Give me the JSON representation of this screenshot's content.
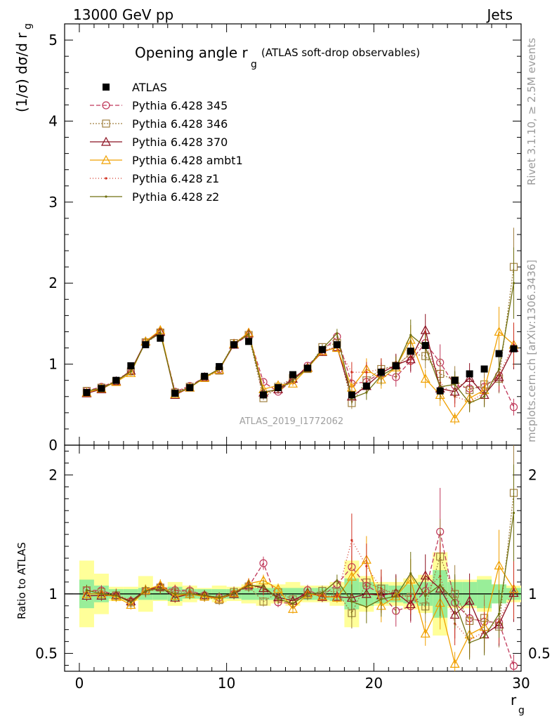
{
  "header": {
    "beam": "13000 GeV pp",
    "category": "Jets",
    "title_main": "Opening angle r",
    "title_sub": "g",
    "title_note": "(ATLAS soft-drop observables)",
    "analysis_id": "ATLAS_2019_I1772062",
    "side_right_top": "Rivet 3.1.10, ≥ 2.5M events",
    "side_right_bottom": "mcplots.cern.ch [arXiv:1306.3436]"
  },
  "chart_data": [
    {
      "panel": "main",
      "type": "line",
      "ylabel": "(1/σ) dσ/d r g",
      "xlabel": "r g",
      "xlim": [
        -1,
        30
      ],
      "ylim": [
        0,
        5.2
      ],
      "yticks": [
        "0",
        "1",
        "2",
        "3",
        "4",
        "5"
      ],
      "xticks": [
        "0",
        "10",
        "20",
        "30"
      ],
      "x": [
        0.5,
        1.5,
        2.5,
        3.5,
        4.5,
        5.5,
        6.5,
        7.5,
        8.5,
        9.5,
        10.5,
        11.5,
        12.5,
        13.5,
        14.5,
        15.5,
        16.5,
        17.5,
        18.5,
        19.5,
        20.5,
        21.5,
        22.5,
        23.5,
        24.5,
        25.5,
        26.5,
        27.5,
        28.5,
        29.5
      ],
      "series": [
        {
          "name": "ATLAS",
          "color": "#000000",
          "marker": "square-filled",
          "values": [
            0.65,
            0.7,
            0.8,
            0.98,
            1.24,
            1.32,
            0.64,
            0.71,
            0.85,
            0.97,
            1.24,
            1.28,
            0.62,
            0.71,
            0.87,
            0.95,
            1.18,
            1.24,
            0.62,
            0.73,
            0.9,
            0.98,
            1.16,
            1.23,
            0.67,
            0.8,
            0.88,
            0.94,
            1.13,
            1.19
          ]
        },
        {
          "name": "Pythia 6.428 345",
          "color": "#c0385a",
          "marker": "circle",
          "dash": "6,3",
          "values": [
            0.67,
            0.72,
            0.79,
            0.92,
            1.27,
            1.4,
            0.66,
            0.73,
            0.84,
            0.94,
            1.24,
            1.36,
            0.78,
            0.66,
            0.8,
            0.98,
            1.16,
            1.34,
            0.76,
            0.78,
            0.9,
            0.84,
            1.04,
            1.26,
            1.02,
            0.74,
            0.7,
            0.72,
            0.86,
            0.47
          ]
        },
        {
          "name": "Pythia 6.428 346",
          "color": "#a08040",
          "marker": "square",
          "dash": "2,2",
          "values": [
            0.67,
            0.71,
            0.79,
            0.91,
            1.27,
            1.39,
            0.65,
            0.72,
            0.83,
            0.92,
            1.26,
            1.36,
            0.58,
            0.72,
            0.83,
            0.94,
            1.21,
            1.26,
            0.52,
            0.8,
            0.94,
            0.98,
            1.13,
            1.1,
            0.88,
            0.8,
            0.68,
            0.75,
            0.82,
            2.2
          ]
        },
        {
          "name": "Pythia 6.428 370",
          "color": "#8b1020",
          "marker": "triangle",
          "values": [
            0.64,
            0.69,
            0.79,
            0.92,
            1.28,
            1.4,
            0.62,
            0.71,
            0.84,
            0.93,
            1.24,
            1.38,
            0.65,
            0.69,
            0.82,
            0.96,
            1.15,
            1.21,
            0.6,
            0.73,
            0.89,
            0.99,
            1.06,
            1.42,
            0.7,
            0.66,
            0.83,
            0.62,
            0.84,
            1.2
          ]
        },
        {
          "name": "Pythia 6.428 ambt1",
          "color": "#f0a000",
          "marker": "triangle",
          "values": [
            0.65,
            0.7,
            0.78,
            0.89,
            1.28,
            1.42,
            0.63,
            0.71,
            0.83,
            0.93,
            1.25,
            1.39,
            0.69,
            0.74,
            0.76,
            0.95,
            1.16,
            1.2,
            0.71,
            0.94,
            0.81,
            0.96,
            1.3,
            0.82,
            0.62,
            0.33,
            0.58,
            0.68,
            1.4,
            1.24
          ]
        },
        {
          "name": "Pythia 6.428 z1",
          "color": "#d03020",
          "marker": "dot",
          "dash": "1,3",
          "values": [
            0.67,
            0.71,
            0.8,
            0.92,
            1.26,
            1.38,
            0.66,
            0.72,
            0.84,
            0.94,
            1.26,
            1.38,
            0.64,
            0.68,
            0.8,
            0.96,
            1.16,
            1.22,
            0.9,
            0.9,
            0.94,
            0.96,
            1.14,
            1.26,
            0.77,
            0.6,
            0.54,
            0.64,
            0.87,
            1.24
          ]
        },
        {
          "name": "Pythia 6.428 z2",
          "color": "#707010",
          "marker": "dot",
          "values": [
            0.67,
            0.7,
            0.79,
            0.91,
            1.27,
            1.38,
            0.64,
            0.71,
            0.84,
            0.94,
            1.25,
            1.37,
            0.66,
            0.68,
            0.8,
            0.95,
            1.19,
            1.38,
            0.58,
            0.65,
            0.86,
            0.96,
            1.36,
            1.21,
            0.72,
            0.75,
            0.52,
            0.6,
            0.94,
            2.0
          ]
        }
      ]
    },
    {
      "panel": "ratio",
      "type": "line",
      "ylabel": "Ratio to ATLAS",
      "xlabel": "r g",
      "xlim": [
        -1,
        30
      ],
      "ylim": [
        0.35,
        2.25
      ],
      "yticks": [
        "0.5",
        "1",
        "2"
      ],
      "xticks": [
        "0",
        "10",
        "20",
        "30"
      ],
      "band_inner_halfwidth": [
        0.12,
        0.07,
        0.04,
        0.04,
        0.05,
        0.05,
        0.06,
        0.04,
        0.04,
        0.04,
        0.04,
        0.05,
        0.05,
        0.05,
        0.05,
        0.05,
        0.05,
        0.06,
        0.13,
        0.1,
        0.08,
        0.07,
        0.08,
        0.1,
        0.2,
        0.1,
        0.1,
        0.12,
        0.08,
        0.05
      ],
      "band_outer_halfwidth": [
        0.28,
        0.17,
        0.06,
        0.06,
        0.15,
        0.06,
        0.1,
        0.07,
        0.05,
        0.07,
        0.06,
        0.08,
        0.1,
        0.08,
        0.1,
        0.07,
        0.07,
        0.1,
        0.28,
        0.15,
        0.1,
        0.1,
        0.13,
        0.16,
        0.35,
        0.12,
        0.12,
        0.15,
        0.08,
        0.07
      ]
    }
  ]
}
